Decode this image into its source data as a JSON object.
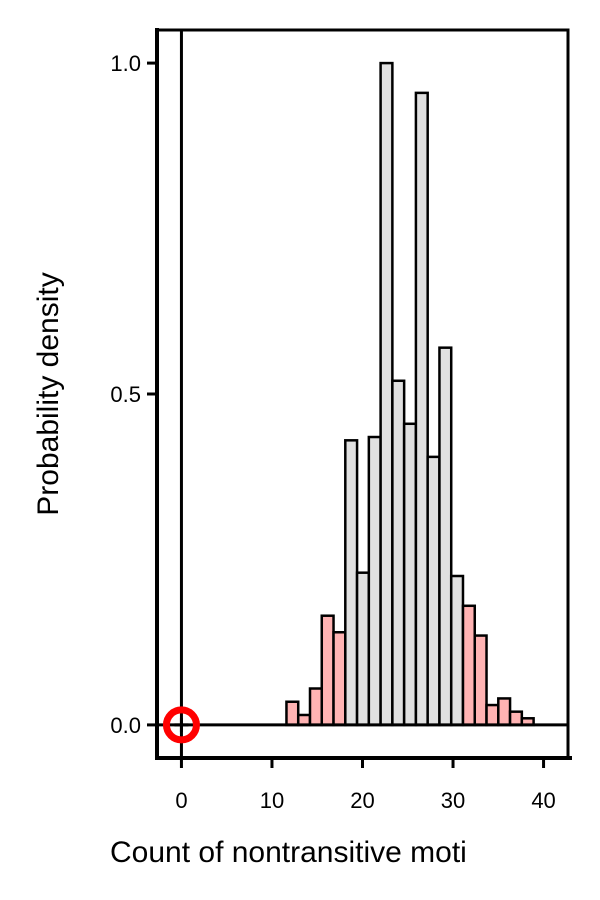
{
  "chart_data": {
    "type": "bar",
    "title": "",
    "xlabel": "Count of nontransitive moti",
    "ylabel": "Probability density",
    "xlim": [
      -2.7,
      42.7
    ],
    "ylim": [
      -0.05,
      1.05
    ],
    "xticks": [
      0,
      10,
      20,
      30,
      40
    ],
    "xtick_labels": [
      "0",
      "10",
      "20",
      "30",
      "40"
    ],
    "yticks": [
      0.0,
      0.5,
      1.0
    ],
    "ytick_labels": [
      "0.0",
      "0.5",
      "1.0"
    ],
    "grid": false,
    "bin_width": 1.3,
    "bins": [
      {
        "x": 11.6,
        "value": 0.035,
        "tail": true
      },
      {
        "x": 12.9,
        "value": 0.015,
        "tail": true
      },
      {
        "x": 14.2,
        "value": 0.055,
        "tail": true
      },
      {
        "x": 15.5,
        "value": 0.165,
        "tail": true
      },
      {
        "x": 16.8,
        "value": 0.14,
        "tail": true
      },
      {
        "x": 18.1,
        "value": 0.43,
        "tail": false
      },
      {
        "x": 19.4,
        "value": 0.23,
        "tail": false
      },
      {
        "x": 20.7,
        "value": 0.435,
        "tail": false
      },
      {
        "x": 22.0,
        "value": 1.0,
        "tail": false
      },
      {
        "x": 23.3,
        "value": 0.52,
        "tail": false
      },
      {
        "x": 24.6,
        "value": 0.455,
        "tail": false
      },
      {
        "x": 25.9,
        "value": 0.955,
        "tail": false
      },
      {
        "x": 27.2,
        "value": 0.405,
        "tail": false
      },
      {
        "x": 28.5,
        "value": 0.57,
        "tail": false
      },
      {
        "x": 29.8,
        "value": 0.225,
        "tail": false
      },
      {
        "x": 31.1,
        "value": 0.18,
        "tail": true
      },
      {
        "x": 32.4,
        "value": 0.135,
        "tail": true
      },
      {
        "x": 33.7,
        "value": 0.03,
        "tail": true
      },
      {
        "x": 35.0,
        "value": 0.04,
        "tail": true
      },
      {
        "x": 36.3,
        "value": 0.02,
        "tail": true
      },
      {
        "x": 37.6,
        "value": 0.01,
        "tail": true
      }
    ],
    "observed_value": 0,
    "colors": {
      "bulk_fill": "#e0e0e0",
      "tail_fill": "#ffb3b3",
      "edge": "#000000",
      "observed_marker": "#ff0000"
    }
  }
}
